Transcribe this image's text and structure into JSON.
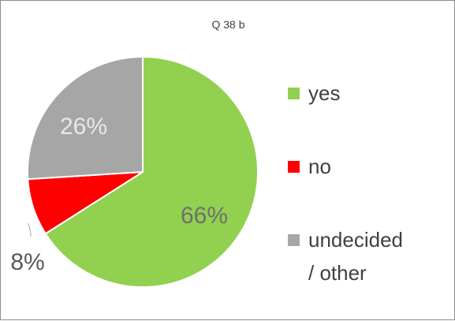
{
  "chart_data": {
    "type": "pie",
    "title": "Q 38 b",
    "slices": [
      {
        "label": "yes",
        "value": 66,
        "label_text": "66%",
        "color": "#92d050"
      },
      {
        "label": "no",
        "value": 8,
        "label_text": "8%",
        "color": "#ff0000"
      },
      {
        "label": "undecided\n/ other",
        "value": 26,
        "label_text": "26%",
        "color": "#a6a6a6"
      }
    ],
    "legend_position": "right"
  }
}
